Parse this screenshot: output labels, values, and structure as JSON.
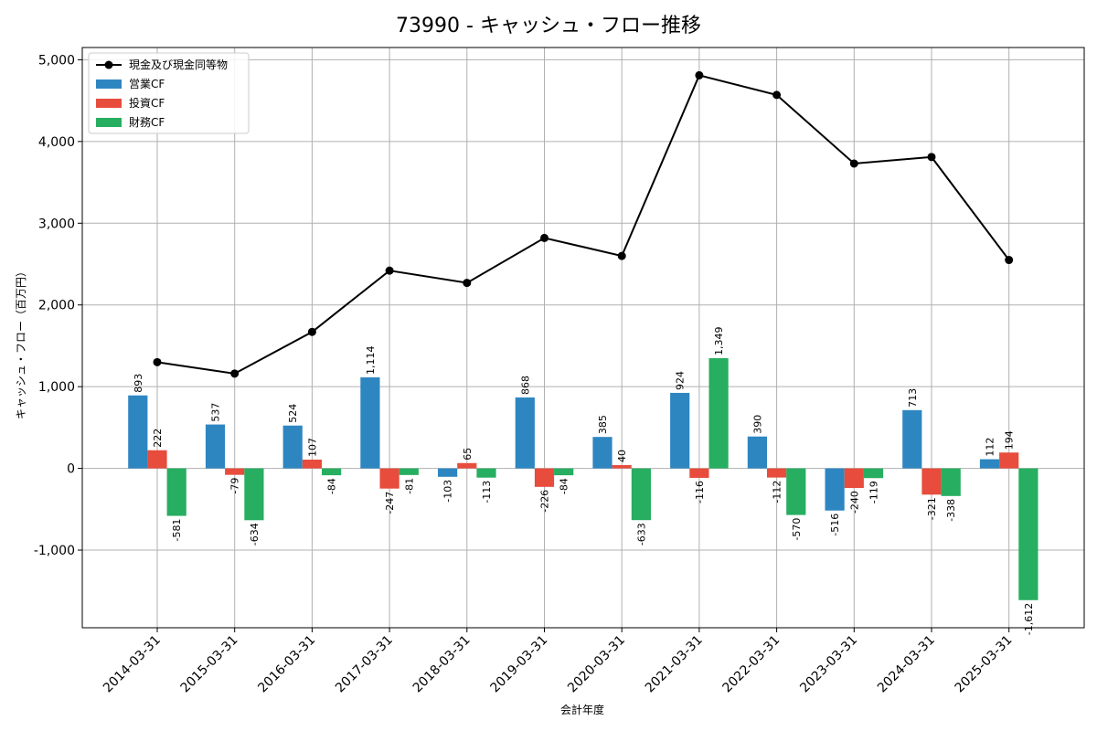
{
  "chart_data": {
    "type": "bar",
    "title": "73990 - キャッシュ・フロー推移",
    "xlabel": "会計年度",
    "ylabel": "キャッシュ・フロー（百万円）",
    "ylim": [
      -1950,
      5150
    ],
    "yticks": [
      -1000,
      0,
      1000,
      2000,
      3000,
      4000,
      5000
    ],
    "ytick_labels": [
      "-1,000",
      "0",
      "1,000",
      "2,000",
      "3,000",
      "4,000",
      "5,000"
    ],
    "grid": true,
    "legend_position": "top-left",
    "categories": [
      "2014-03-31",
      "2015-03-31",
      "2016-03-31",
      "2017-03-31",
      "2018-03-31",
      "2019-03-31",
      "2020-03-31",
      "2021-03-31",
      "2022-03-31",
      "2023-03-31",
      "2024-03-31",
      "2025-03-31"
    ],
    "series": [
      {
        "name": "営業CF",
        "kind": "bar",
        "color": "#2e86c1",
        "values": [
          893,
          537,
          524,
          1114,
          -103,
          868,
          385,
          924,
          390,
          -516,
          713,
          112
        ],
        "labels": [
          "893",
          "537",
          "524",
          "1,114",
          "-103",
          "868",
          "385",
          "924",
          "390",
          "-516",
          "713",
          "112"
        ]
      },
      {
        "name": "投資CF",
        "kind": "bar",
        "color": "#e74c3c",
        "values": [
          222,
          -79,
          107,
          -247,
          65,
          -226,
          40,
          -116,
          -112,
          -240,
          -321,
          194
        ],
        "labels": [
          "222",
          "-79",
          "107",
          "-247",
          "65",
          "-226",
          "40",
          "-116",
          "-112",
          "-240",
          "-321",
          "194"
        ]
      },
      {
        "name": "財務CF",
        "kind": "bar",
        "color": "#27ae60",
        "values": [
          -581,
          -634,
          -84,
          -81,
          -113,
          -84,
          -633,
          1349,
          -570,
          -119,
          -338,
          -1612
        ],
        "labels": [
          "-581",
          "-634",
          "-84",
          "-81",
          "-113",
          "-84",
          "-633",
          "1,349",
          "-570",
          "-119",
          "-338",
          "-1,612"
        ]
      },
      {
        "name": "現金及び現金同等物",
        "kind": "line",
        "color": "#000000",
        "values": [
          1300,
          1160,
          1670,
          2420,
          2270,
          2820,
          2600,
          4810,
          4570,
          3730,
          3810,
          2550
        ]
      }
    ]
  }
}
